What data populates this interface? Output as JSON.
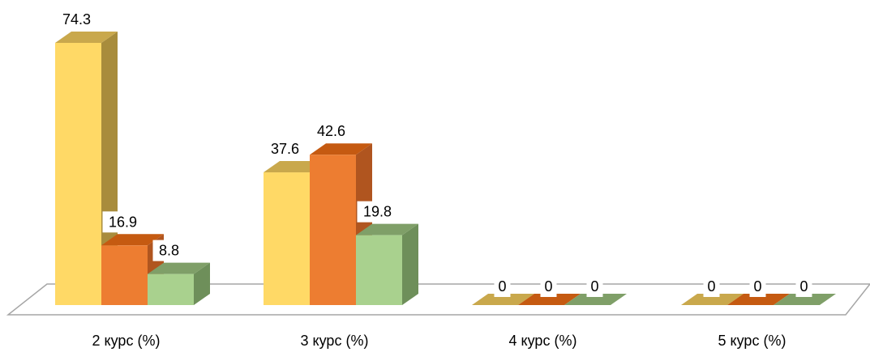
{
  "chart_data": {
    "type": "bar",
    "categories": [
      "2 курс (%)",
      "3 курс (%)",
      "4 курс (%)",
      "5 курс (%)"
    ],
    "series": [
      {
        "values": [
          74.3,
          37.6,
          0,
          0
        ],
        "color": "#ffd966",
        "top_color": "#c9a84c",
        "side_color": "#a88c3c"
      },
      {
        "values": [
          16.9,
          42.6,
          0,
          0
        ],
        "color": "#ed7d31",
        "top_color": "#c55a11",
        "side_color": "#b0551f"
      },
      {
        "values": [
          8.8,
          19.8,
          0,
          0
        ],
        "color": "#a9d18e",
        "top_color": "#7f9f68",
        "side_color": "#6e8f5a"
      }
    ],
    "data_labels": [
      [
        "74.3",
        "37.6",
        "0",
        "0"
      ],
      [
        "16.9",
        "42.6",
        "0",
        "0"
      ],
      [
        "8.8",
        "19.8",
        "0",
        "0"
      ]
    ],
    "ylim": [
      0,
      80
    ],
    "grid": false,
    "legend": "none",
    "style": "3d-clustered-column"
  }
}
